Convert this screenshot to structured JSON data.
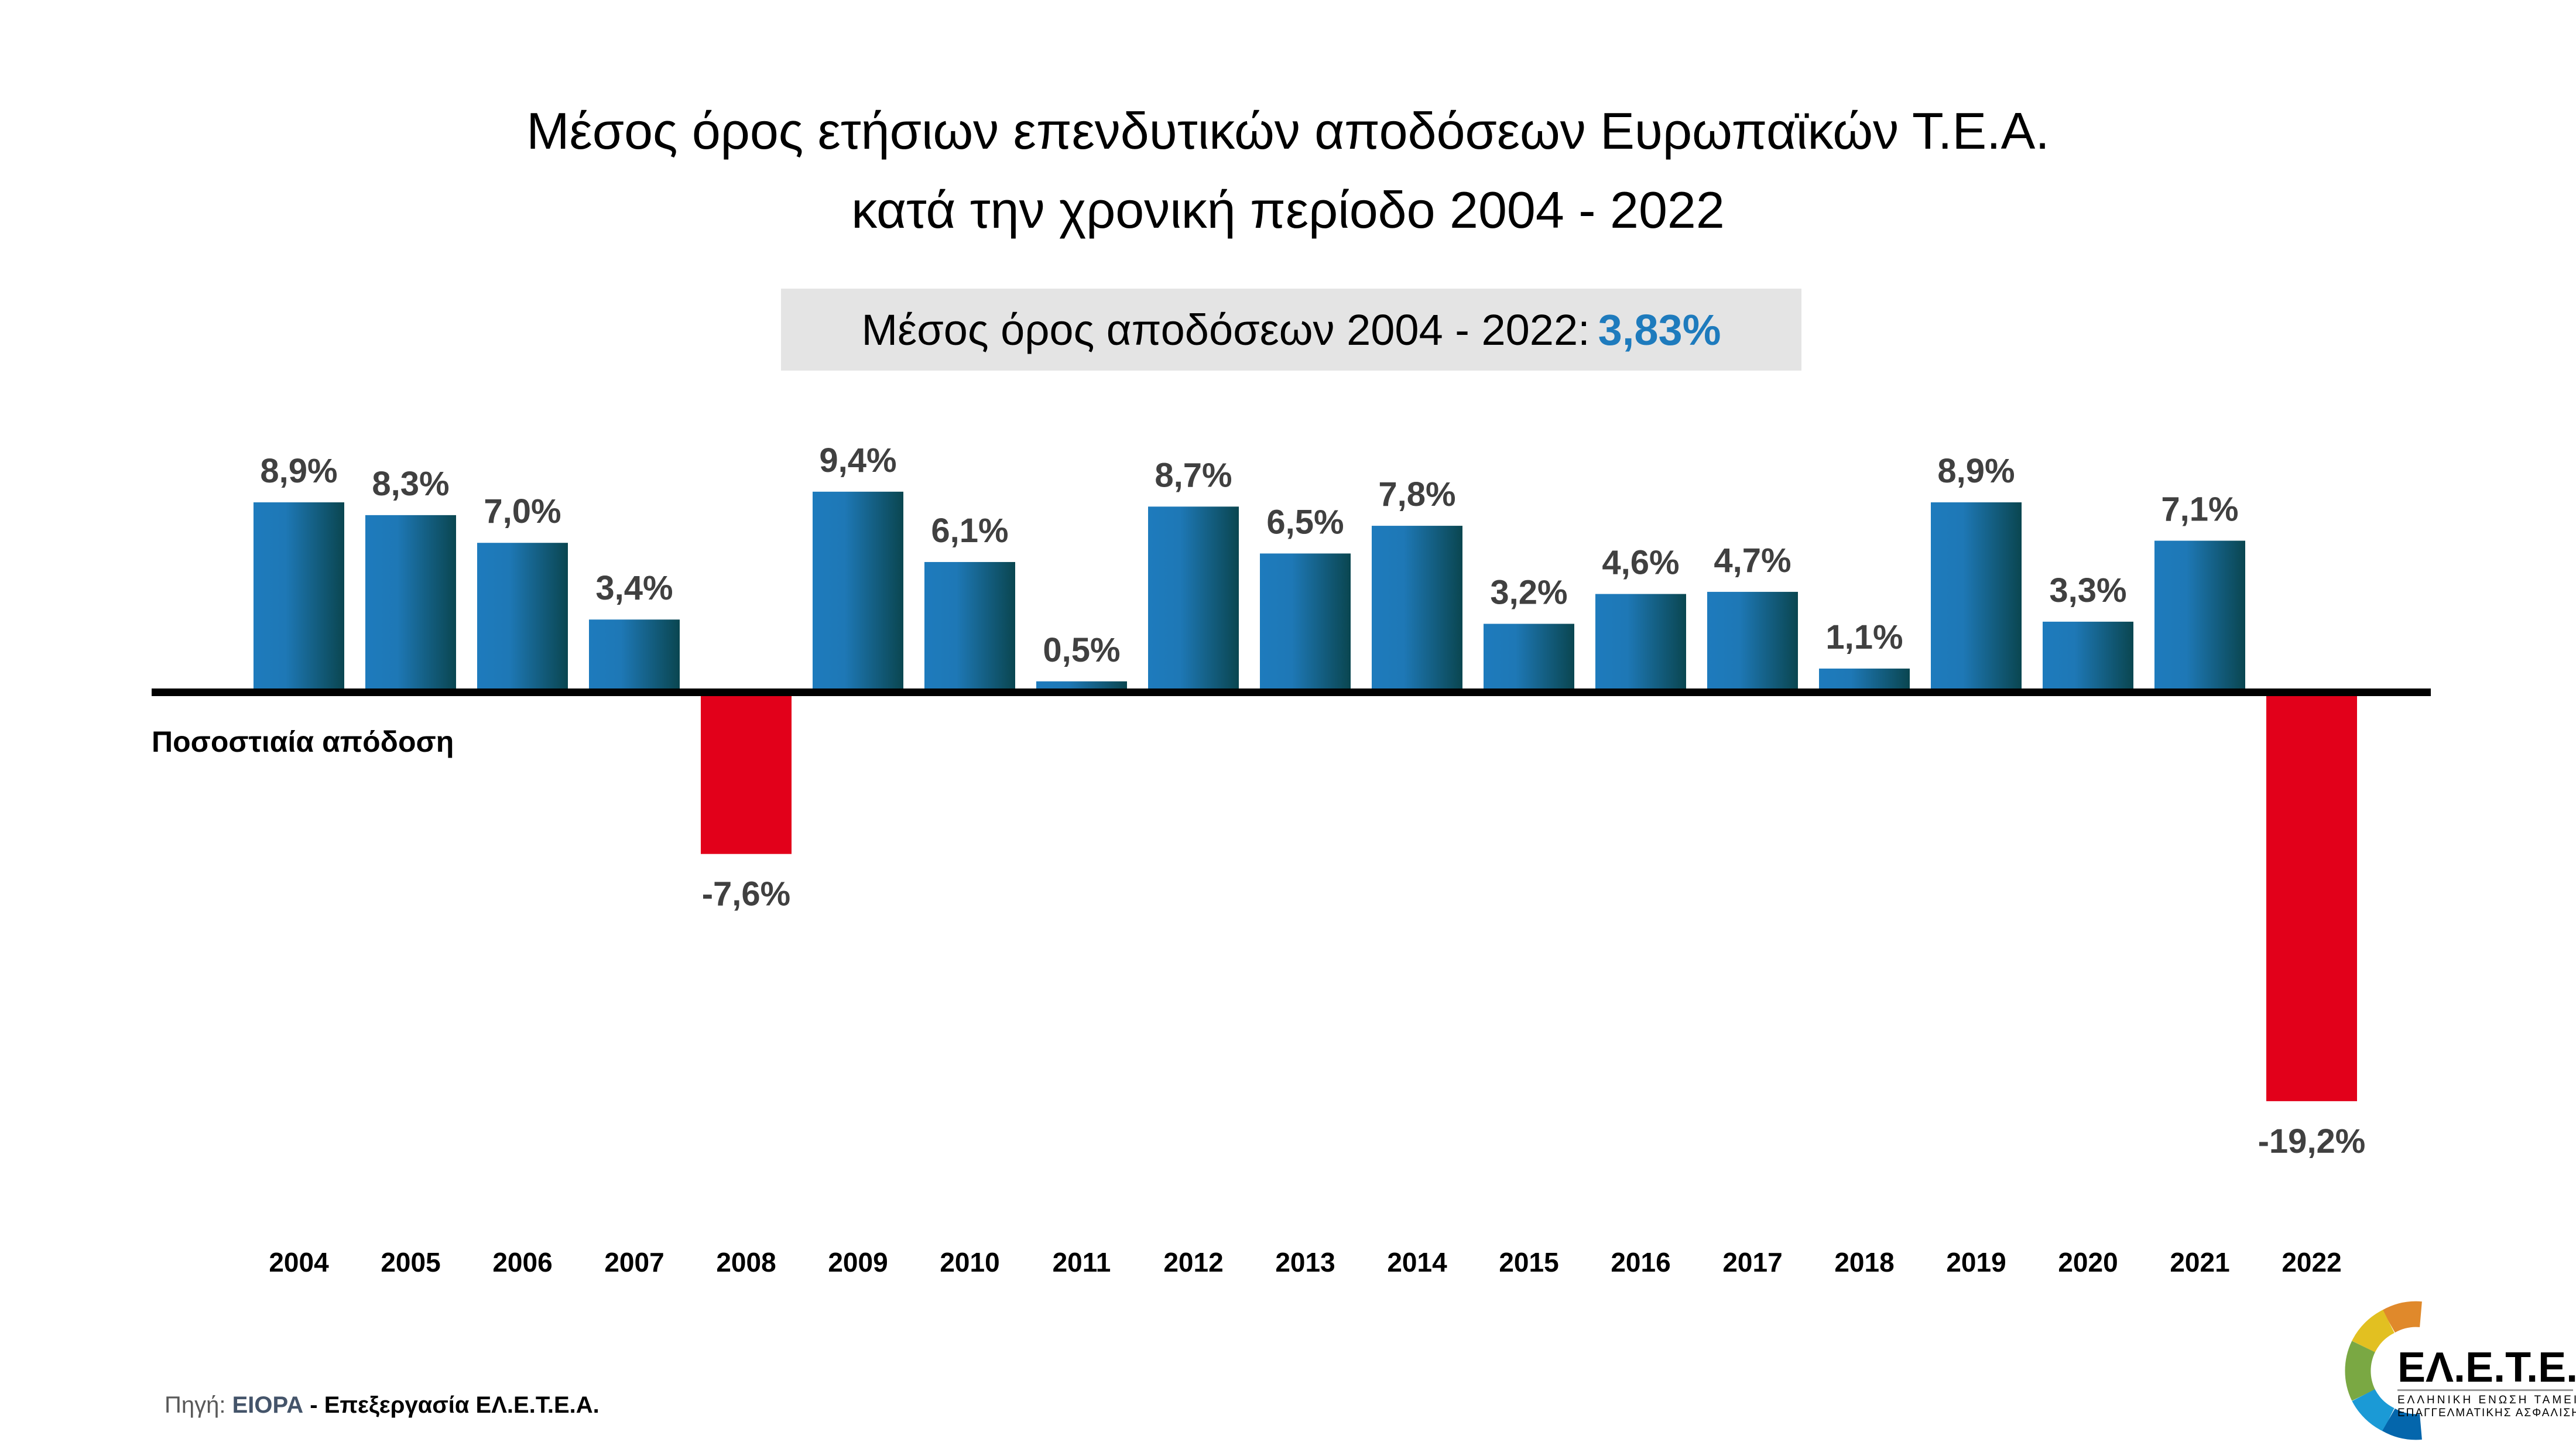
{
  "title_line1": "Μέσος όρος ετήσιων επενδυτικών αποδόσεων Ευρωπαϊκών Τ.Ε.Α.",
  "title_line2": "κατά την χρονική περίοδο 2004 - 2022",
  "average_box": {
    "label": "Μέσος όρος αποδόσεων 2004 - 2022:",
    "value": "3,83%",
    "value_color": "#1e7bbd"
  },
  "source": {
    "prefix": "Πηγή:",
    "org": "EIOPA",
    "suffix": "- Επεξεργασία ΕΛ.Ε.Τ.Ε.Α."
  },
  "logo": {
    "text": "ΕΛ.Ε.Τ.Ε.Α.",
    "subtitle_line1": "ΕΛΛΗΝΙΚΗ ΕΝΩΣΗ ΤΑΜΕΙΩΝ",
    "subtitle_line2": "ΕΠΑΓΓΕΛΜΑΤΙΚΗΣ ΑΣΦΑΛΙΣΗΣ"
  },
  "chart_data": {
    "type": "bar",
    "title": "Μέσος όρος ετήσιων επενδυτικών αποδόσεων Ευρωπαϊκών Τ.Ε.Α. κατά την χρονική περίοδο 2004 - 2022",
    "ylabel": "Ποσοστιαία απόδοση",
    "xlabel": "",
    "categories": [
      "2004",
      "2005",
      "2006",
      "2007",
      "2008",
      "2009",
      "2010",
      "2011",
      "2012",
      "2013",
      "2014",
      "2015",
      "2016",
      "2017",
      "2018",
      "2019",
      "2020",
      "2021",
      "2022"
    ],
    "values": [
      8.9,
      8.3,
      7.0,
      3.4,
      -7.6,
      9.4,
      6.1,
      0.5,
      8.7,
      6.5,
      7.8,
      3.2,
      4.6,
      4.7,
      1.1,
      8.9,
      3.3,
      7.1,
      -19.2
    ],
    "data_labels": [
      "8,9%",
      "8,3%",
      "7,0%",
      "3,4%",
      "-7,6%",
      "9,4%",
      "6,1%",
      "0,5%",
      "8,7%",
      "6,5%",
      "7,8%",
      "3,2%",
      "4,6%",
      "4,7%",
      "1,1%",
      "8,9%",
      "3,3%",
      "7,1%",
      "-19,2%"
    ],
    "ylim": [
      -20,
      10
    ],
    "grid": false,
    "colors": {
      "positive": "#1e7bbd",
      "positive_dark": "#0a4650",
      "negative": "#e2001a"
    }
  }
}
